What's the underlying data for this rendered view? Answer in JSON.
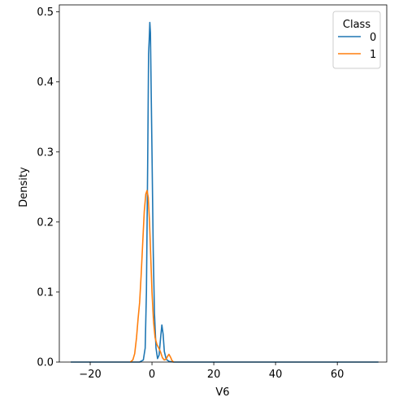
{
  "chart_data": {
    "type": "line",
    "title": "",
    "xlabel": "V6",
    "ylabel": "Density",
    "xlim": [
      -30,
      76
    ],
    "ylim": [
      0,
      0.51
    ],
    "x_ticks": [
      -20,
      0,
      20,
      40,
      60
    ],
    "x_tick_labels": [
      "−20",
      "0",
      "20",
      "40",
      "60"
    ],
    "y_ticks": [
      0.0,
      0.1,
      0.2,
      0.3,
      0.4,
      0.5
    ],
    "y_tick_labels": [
      "0.0",
      "0.1",
      "0.2",
      "0.3",
      "0.4",
      "0.5"
    ],
    "grid": false,
    "legend": {
      "title": "Class",
      "placement": "top-right"
    },
    "series": [
      {
        "name": "0",
        "color": "#1f77b4",
        "points": [
          [
            -26.3,
            0.0
          ],
          [
            -10,
            0.0
          ],
          [
            -4,
            0.0
          ],
          [
            -2.8,
            0.003
          ],
          [
            -2.2,
            0.02
          ],
          [
            -1.8,
            0.1
          ],
          [
            -1.4,
            0.28
          ],
          [
            -1.1,
            0.44
          ],
          [
            -0.9,
            0.46
          ],
          [
            -0.7,
            0.485
          ],
          [
            -0.5,
            0.47
          ],
          [
            -0.3,
            0.4
          ],
          [
            0.0,
            0.3
          ],
          [
            0.4,
            0.16
          ],
          [
            0.8,
            0.07
          ],
          [
            1.3,
            0.02
          ],
          [
            1.8,
            0.005
          ],
          [
            2.3,
            0.01
          ],
          [
            2.8,
            0.035
          ],
          [
            3.2,
            0.053
          ],
          [
            3.6,
            0.04
          ],
          [
            4.0,
            0.015
          ],
          [
            4.6,
            0.004
          ],
          [
            5.5,
            0.001
          ],
          [
            7,
            0.0
          ],
          [
            20,
            0.0
          ],
          [
            40,
            0.0
          ],
          [
            60,
            0.0
          ],
          [
            73.3,
            0.0
          ]
        ]
      },
      {
        "name": "1",
        "color": "#ff7f0e",
        "points": [
          [
            -7.0,
            0.0
          ],
          [
            -6.2,
            0.003
          ],
          [
            -5.6,
            0.012
          ],
          [
            -5.0,
            0.035
          ],
          [
            -4.5,
            0.062
          ],
          [
            -4.0,
            0.085
          ],
          [
            -3.5,
            0.125
          ],
          [
            -3.0,
            0.17
          ],
          [
            -2.5,
            0.215
          ],
          [
            -2.0,
            0.24
          ],
          [
            -1.6,
            0.245
          ],
          [
            -1.2,
            0.235
          ],
          [
            -0.8,
            0.2
          ],
          [
            -0.4,
            0.15
          ],
          [
            0.0,
            0.1
          ],
          [
            0.5,
            0.058
          ],
          [
            1.0,
            0.035
          ],
          [
            1.6,
            0.025
          ],
          [
            2.2,
            0.02
          ],
          [
            2.8,
            0.014
          ],
          [
            3.4,
            0.006
          ],
          [
            4.0,
            0.003
          ],
          [
            4.6,
            0.004
          ],
          [
            5.0,
            0.008
          ],
          [
            5.5,
            0.011
          ],
          [
            6.0,
            0.007
          ],
          [
            6.5,
            0.002
          ],
          [
            7.0,
            0.0
          ]
        ]
      }
    ]
  }
}
